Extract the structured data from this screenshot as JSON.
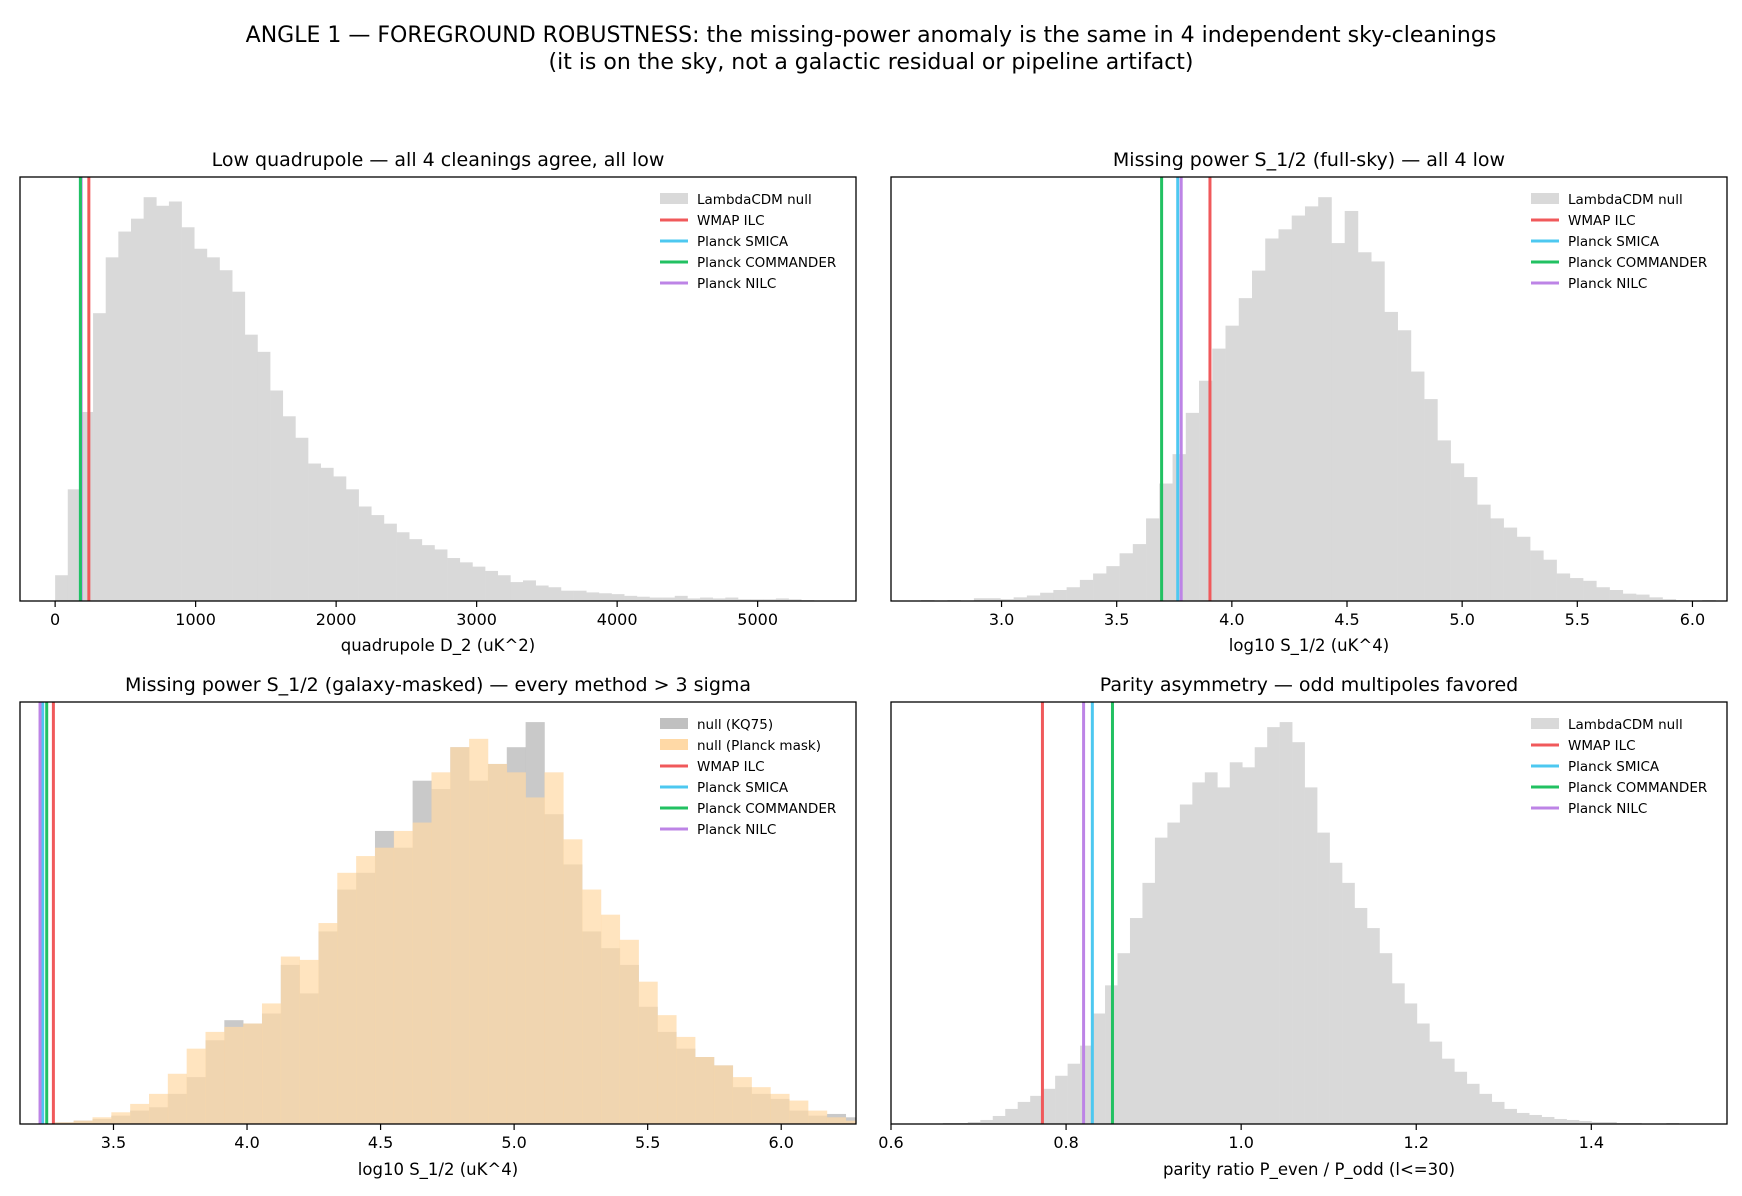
{
  "suptitle": {
    "line1": "ANGLE 1 — FOREGROUND ROBUSTNESS: the missing-power anomaly is the same in 4 independent sky-cleanings",
    "line2": "(it is on the sky, not a galactic residual or pipeline artifact)"
  },
  "colors": {
    "null": "#d9d9d9",
    "null_kq75": "#c0c0c0",
    "null_planck_mask": "#ffd9a6",
    "WMAP ILC": "#f0595b",
    "Planck SMICA": "#4dc8f0",
    "Planck COMMANDER": "#22c162",
    "Planck NILC": "#bd84e6"
  },
  "chart_data": [
    {
      "type": "histogram",
      "title": "Low quadrupole — all 4 cleanings agree, all low",
      "xlabel": "quadrupole  D_2  (uK^2)",
      "ylabel": "",
      "xlim": [
        -250,
        5700
      ],
      "xticks": [
        0,
        1000,
        2000,
        3000,
        4000,
        5000
      ],
      "ytick_labels": false,
      "legend_position": "top-right",
      "legend": [
        "LambdaCDM null",
        "WMAP ILC",
        "Planck SMICA",
        "Planck COMMANDER",
        "Planck NILC"
      ],
      "histograms": [
        {
          "name": "LambdaCDM null",
          "color_key": "null",
          "bin_start": 0,
          "bin_width": 90,
          "counts": [
            30,
            130,
            220,
            335,
            400,
            430,
            445,
            470,
            460,
            465,
            435,
            410,
            400,
            385,
            360,
            310,
            290,
            245,
            215,
            190,
            160,
            155,
            145,
            130,
            110,
            100,
            90,
            80,
            72,
            65,
            60,
            50,
            45,
            40,
            35,
            30,
            22,
            24,
            18,
            16,
            12,
            12,
            10,
            9,
            8,
            6,
            5,
            4,
            4,
            6,
            3,
            4,
            3,
            4,
            2,
            2,
            2,
            3,
            2,
            1
          ]
        }
      ],
      "vlines": [
        {
          "name": "WMAP ILC",
          "x": 240
        },
        {
          "name": "Planck NILC",
          "x": 185
        },
        {
          "name": "Planck SMICA",
          "x": 180
        },
        {
          "name": "Planck COMMANDER",
          "x": 180
        }
      ]
    },
    {
      "type": "histogram",
      "title": "Missing power S_1/2 (full-sky) — all 4 low",
      "xlabel": "log10 S_1/2 (uK^4)",
      "ylabel": "",
      "xlim": [
        2.52,
        6.15
      ],
      "xticks": [
        3.0,
        3.5,
        4.0,
        4.5,
        5.0,
        5.5,
        6.0
      ],
      "ytick_labels": false,
      "legend_position": "top-right",
      "legend": [
        "LambdaCDM null",
        "WMAP ILC",
        "Planck SMICA",
        "Planck COMMANDER",
        "Planck NILC"
      ],
      "histograms": [
        {
          "name": "LambdaCDM null",
          "color_key": "null",
          "bin_start": 2.65,
          "bin_width": 0.0575,
          "counts": [
            1,
            0,
            1,
            0,
            3,
            3,
            2,
            4,
            6,
            9,
            12,
            15,
            23,
            30,
            38,
            52,
            62,
            90,
            128,
            160,
            205,
            240,
            275,
            300,
            330,
            360,
            395,
            405,
            420,
            430,
            440,
            390,
            425,
            380,
            370,
            315,
            295,
            250,
            220,
            175,
            150,
            135,
            105,
            90,
            80,
            70,
            55,
            45,
            30,
            25,
            22,
            15,
            12,
            8,
            7,
            4,
            2,
            1,
            0,
            1
          ]
        }
      ],
      "vlines": [
        {
          "name": "WMAP ILC",
          "x": 3.905
        },
        {
          "name": "Planck SMICA",
          "x": 3.765
        },
        {
          "name": "Planck NILC",
          "x": 3.78
        },
        {
          "name": "Planck COMMANDER",
          "x": 3.695
        }
      ]
    },
    {
      "type": "histogram",
      "title": "Missing power S_1/2 (galaxy-masked) — every method > 3 sigma",
      "xlabel": "log10 S_1/2 (uK^4)",
      "ylabel": "",
      "xlim": [
        3.15,
        6.28
      ],
      "xticks": [
        3.5,
        4.0,
        4.5,
        5.0,
        5.5,
        6.0
      ],
      "ytick_labels": false,
      "legend_position": "top-right",
      "legend": [
        "null (KQ75)",
        "null (Planck mask)",
        "WMAP ILC",
        "Planck SMICA",
        "Planck COMMANDER",
        "Planck NILC"
      ],
      "histograms": [
        {
          "name": "null (KQ75)",
          "color_key": "null_kq75",
          "bin_start": 3.21,
          "bin_width": 0.0705,
          "counts": [
            0,
            1,
            2,
            3,
            5,
            8,
            10,
            18,
            28,
            50,
            62,
            60,
            66,
            95,
            78,
            115,
            140,
            150,
            175,
            165,
            205,
            200,
            225,
            205,
            215,
            225,
            240,
            185,
            155,
            115,
            105,
            95,
            70,
            55,
            45,
            40,
            35,
            22,
            18,
            15,
            8,
            5,
            6,
            4,
            2,
            1
          ]
        },
        {
          "name": "null (Planck mask)",
          "color_key": "null_planck_mask",
          "bin_start": 3.21,
          "bin_width": 0.0705,
          "counts": [
            0,
            1,
            2,
            4,
            7,
            12,
            18,
            30,
            45,
            55,
            58,
            60,
            72,
            100,
            98,
            120,
            150,
            160,
            165,
            175,
            180,
            210,
            225,
            230,
            215,
            210,
            195,
            210,
            170,
            140,
            125,
            110,
            85,
            65,
            52,
            40,
            35,
            28,
            22,
            18,
            14,
            8,
            4,
            2,
            1,
            1
          ]
        }
      ],
      "vlines": [
        {
          "name": "WMAP ILC",
          "x": 3.275
        },
        {
          "name": "Planck COMMANDER",
          "x": 3.25
        },
        {
          "name": "Planck SMICA",
          "x": 3.235
        },
        {
          "name": "Planck NILC",
          "x": 3.225
        }
      ]
    },
    {
      "type": "histogram",
      "title": "Parity asymmetry — odd multipoles favored",
      "xlabel": "parity ratio  P_even / P_odd  (l<=30)",
      "ylabel": "",
      "xlim": [
        0.6,
        1.555
      ],
      "xticks": [
        0.6,
        0.8,
        1.0,
        1.2,
        1.4
      ],
      "ytick_labels": false,
      "legend_position": "top-right",
      "legend": [
        "LambdaCDM null",
        "WMAP ILC",
        "Planck SMICA",
        "Planck COMMANDER",
        "Planck NILC"
      ],
      "histograms": [
        {
          "name": "LambdaCDM null",
          "color_key": "null",
          "bin_start": 0.645,
          "bin_width": 0.01425,
          "counts": [
            0,
            1,
            1,
            2,
            4,
            8,
            15,
            22,
            28,
            35,
            48,
            60,
            78,
            110,
            138,
            170,
            205,
            240,
            285,
            300,
            318,
            340,
            350,
            335,
            360,
            355,
            375,
            395,
            400,
            380,
            335,
            290,
            260,
            240,
            215,
            195,
            170,
            140,
            120,
            100,
            82,
            65,
            52,
            40,
            30,
            22,
            15,
            11,
            9,
            7,
            5,
            4,
            3,
            2,
            2,
            1,
            1,
            0,
            0,
            1
          ]
        }
      ],
      "vlines": [
        {
          "name": "WMAP ILC",
          "x": 0.773
        },
        {
          "name": "Planck NILC",
          "x": 0.82
        },
        {
          "name": "Planck SMICA",
          "x": 0.83
        },
        {
          "name": "Planck COMMANDER",
          "x": 0.853
        }
      ]
    }
  ]
}
